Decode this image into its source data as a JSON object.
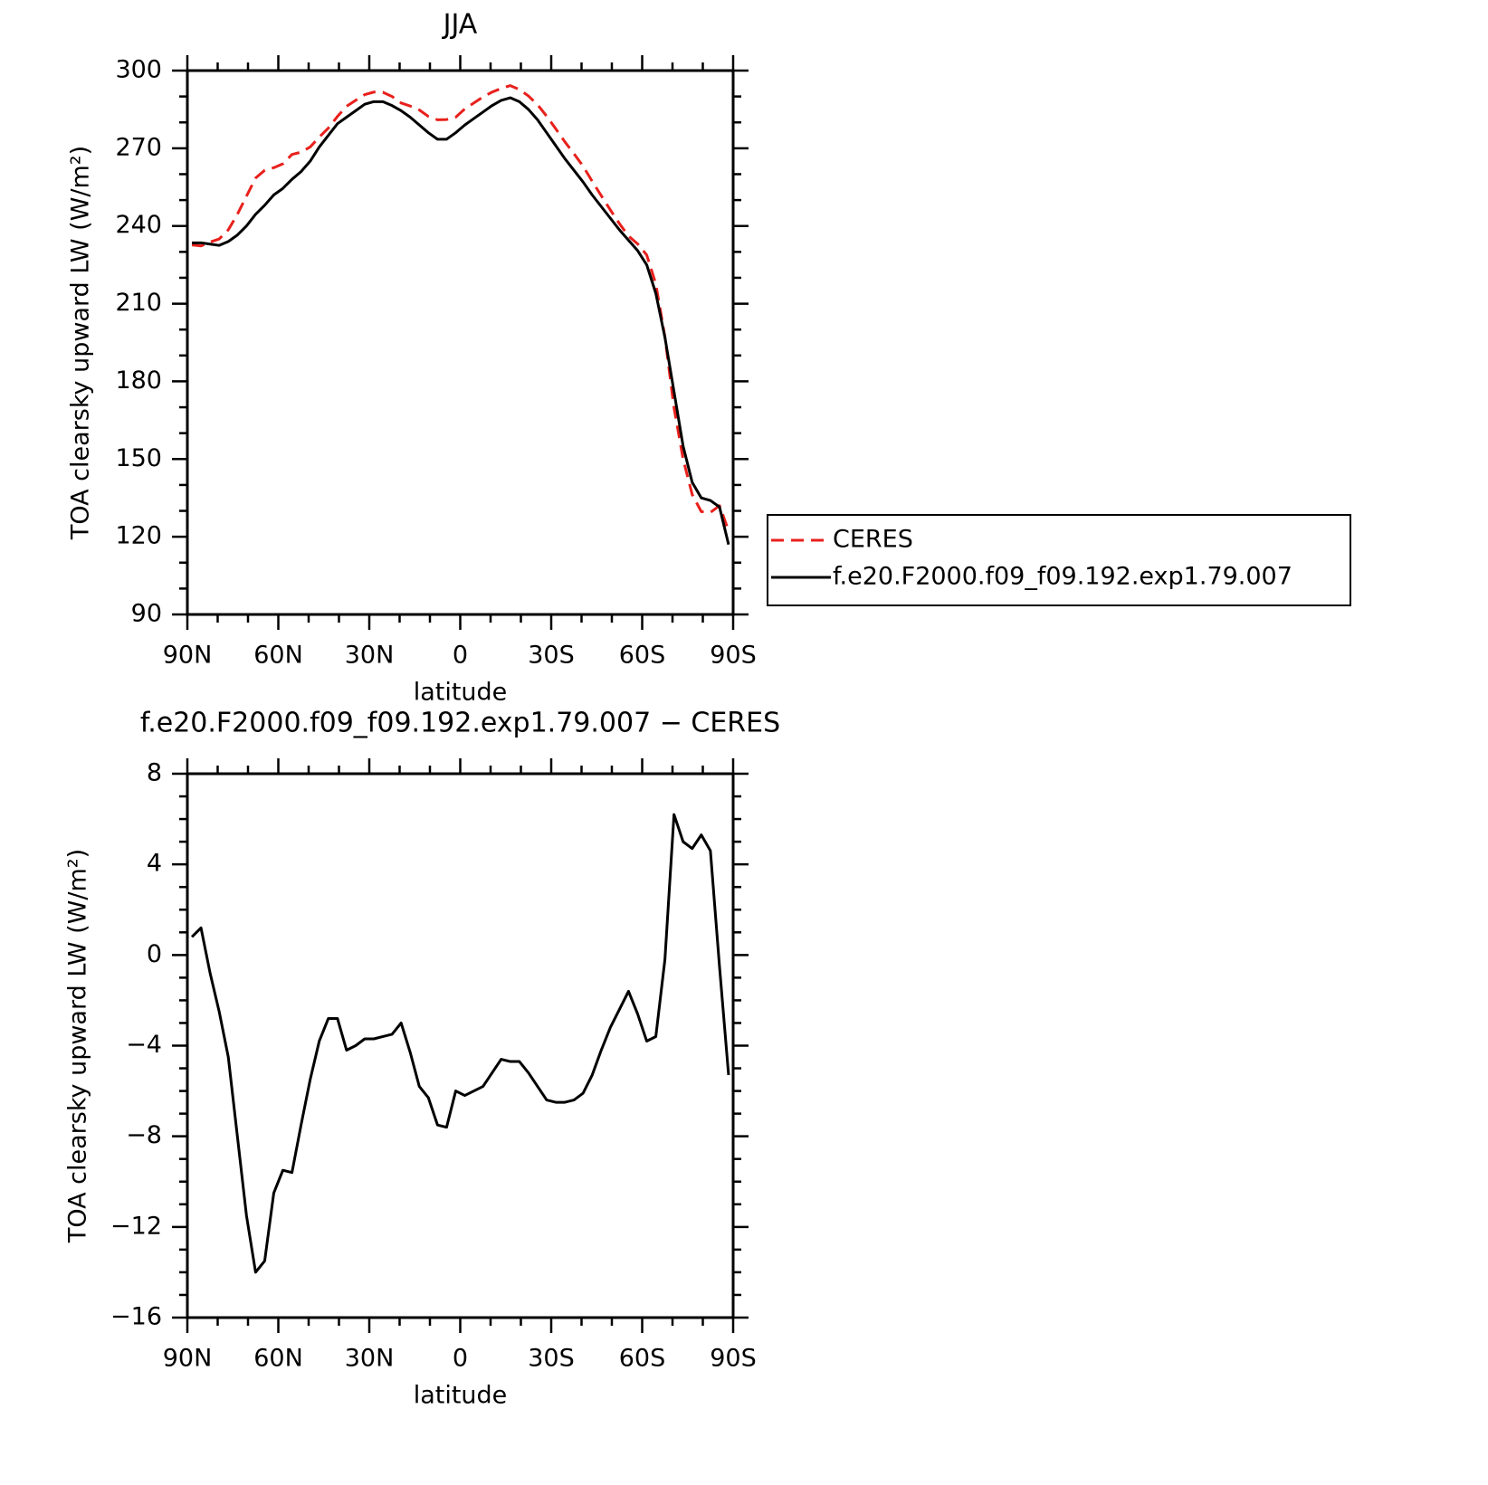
{
  "chart_data": [
    {
      "type": "line",
      "title": "JJA",
      "x_label": "latitude",
      "y_label": "TOA clearsky upward LW (W/m²)",
      "x": [
        88.5,
        85.5,
        82.5,
        79.5,
        76.5,
        73.5,
        70.5,
        67.5,
        64.5,
        61.5,
        58.5,
        55.5,
        52.5,
        49.5,
        46.5,
        43.5,
        40.5,
        37.5,
        34.5,
        31.5,
        28.5,
        25.5,
        22.5,
        19.5,
        16.5,
        13.5,
        10.5,
        7.5,
        4.5,
        1.5,
        -1.5,
        -4.5,
        -7.5,
        -10.5,
        -13.5,
        -16.5,
        -19.5,
        -22.5,
        -25.5,
        -28.5,
        -31.5,
        -34.5,
        -37.5,
        -40.5,
        -43.5,
        -46.5,
        -49.5,
        -52.5,
        -55.5,
        -58.5,
        -61.5,
        -64.5,
        -67.5,
        -70.5,
        -73.5,
        -76.5,
        -79.5,
        -82.5,
        -85.5,
        -88.5
      ],
      "series": [
        {
          "name": "CERES",
          "color": "#e8201c",
          "dashed": true,
          "values": [
            232.7,
            232.3,
            233.8,
            235,
            238.5,
            244.5,
            251.5,
            258.5,
            261.5,
            262.5,
            264,
            267.6,
            268.5,
            270.5,
            274.3,
            277.8,
            282.3,
            286.2,
            288.5,
            290.7,
            291.7,
            291.6,
            290,
            287.5,
            286.3,
            284.8,
            282.3,
            281,
            281.1,
            282,
            285.2,
            287.5,
            289.8,
            291.7,
            293.1,
            294.2,
            292.7,
            290.2,
            286.8,
            282.4,
            277.5,
            272.5,
            267.9,
            263.1,
            257.3,
            251.7,
            246.2,
            240.9,
            236.1,
            233.1,
            228.8,
            217.6,
            197.2,
            169.8,
            150,
            136.3,
            129.7,
            129.4,
            132,
            122.3
          ]
        },
        {
          "name": "f.e20.F2000.f09_f09.192.exp1.79.007",
          "color": "#000000",
          "dashed": false,
          "values": [
            233.5,
            233.5,
            233,
            232.5,
            234,
            236.5,
            240,
            244.5,
            248,
            252,
            254.5,
            258,
            261,
            265,
            270.5,
            275,
            279.5,
            282,
            284.5,
            287,
            288,
            288,
            286.5,
            284.5,
            282,
            279,
            276,
            273.5,
            273.5,
            276,
            279,
            281.5,
            284,
            286.5,
            288.5,
            289.5,
            288,
            285,
            281,
            276,
            271,
            266,
            261.5,
            257,
            252,
            247.5,
            243,
            238.5,
            234.5,
            230.5,
            225,
            214,
            197,
            176,
            155,
            141,
            135,
            134,
            131.5,
            117
          ]
        }
      ],
      "xlim": [
        90,
        -90
      ],
      "xticks": [
        {
          "value": 90,
          "label": "90N"
        },
        {
          "value": 60,
          "label": "60N"
        },
        {
          "value": 30,
          "label": "30N"
        },
        0,
        {
          "value": -30,
          "label": "30S"
        },
        {
          "value": -60,
          "label": "60S"
        },
        {
          "value": -90,
          "label": "90S"
        }
      ],
      "ylim": [
        90,
        300
      ],
      "yticks": [
        90,
        120,
        150,
        180,
        210,
        240,
        270,
        300
      ],
      "legend": "right"
    },
    {
      "type": "line",
      "title": "f.e20.F2000.f09_f09.192.exp1.79.007 − CERES",
      "x_label": "latitude",
      "y_label": "TOA clearsky upward LW (W/m²)",
      "x": [
        88.5,
        85.5,
        82.5,
        79.5,
        76.5,
        73.5,
        70.5,
        67.5,
        64.5,
        61.5,
        58.5,
        55.5,
        52.5,
        49.5,
        46.5,
        43.5,
        40.5,
        37.5,
        34.5,
        31.5,
        28.5,
        25.5,
        22.5,
        19.5,
        16.5,
        13.5,
        10.5,
        7.5,
        4.5,
        1.5,
        -1.5,
        -4.5,
        -7.5,
        -10.5,
        -13.5,
        -16.5,
        -19.5,
        -22.5,
        -25.5,
        -28.5,
        -31.5,
        -34.5,
        -37.5,
        -40.5,
        -43.5,
        -46.5,
        -49.5,
        -52.5,
        -55.5,
        -58.5,
        -61.5,
        -64.5,
        -67.5,
        -70.5,
        -73.5,
        -76.5,
        -79.5,
        -82.5,
        -85.5,
        -88.5
      ],
      "color": "#000000",
      "values": [
        0.8,
        1.2,
        -0.8,
        -2.5,
        -4.5,
        -8,
        -11.5,
        -14,
        -13.5,
        -10.5,
        -9.5,
        -9.6,
        -7.5,
        -5.5,
        -3.8,
        -2.8,
        -2.8,
        -4.2,
        -4,
        -3.7,
        -3.7,
        -3.6,
        -3.5,
        -3,
        -4.3,
        -5.8,
        -6.3,
        -7.5,
        -7.6,
        -6,
        -6.2,
        -6,
        -5.8,
        -5.2,
        -4.6,
        -4.7,
        -4.7,
        -5.2,
        -5.8,
        -6.4,
        -6.5,
        -6.5,
        -6.4,
        -6.1,
        -5.3,
        -4.2,
        -3.2,
        -2.4,
        -1.6,
        -2.6,
        -3.8,
        -3.6,
        -0.2,
        6.2,
        5,
        4.7,
        5.3,
        4.6,
        -0.5,
        -5.3
      ],
      "xlim": [
        90,
        -90
      ],
      "xticks": [
        {
          "value": 90,
          "label": "90N"
        },
        {
          "value": 60,
          "label": "60N"
        },
        {
          "value": 30,
          "label": "30N"
        },
        0,
        {
          "value": -30,
          "label": "30S"
        },
        {
          "value": -60,
          "label": "60S"
        },
        {
          "value": -90,
          "label": "90S"
        }
      ],
      "ylim": [
        -16,
        8
      ],
      "yticks": [
        {
          "value": -16,
          "label": "−16"
        },
        {
          "value": -12,
          "label": "−12"
        },
        {
          "value": -8,
          "label": "−8"
        },
        {
          "value": -4,
          "label": "−4"
        },
        0,
        4,
        8
      ]
    }
  ]
}
